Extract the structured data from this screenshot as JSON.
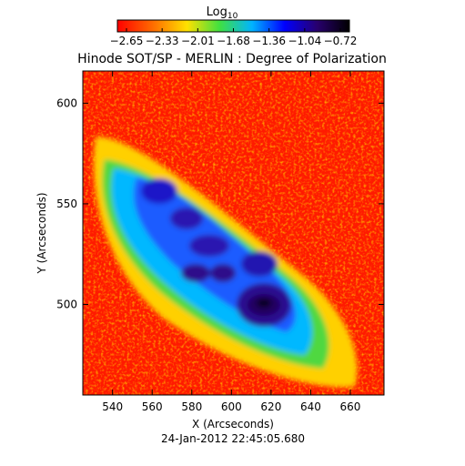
{
  "chart_data": {
    "type": "heatmap",
    "title": "Hinode SOT/SP - MERLIN : Degree of Polarization",
    "xlabel": "X (Arcseconds)",
    "ylabel": "Y (Arcseconds)",
    "date_label": "24-Jan-2012 22:45:05.680",
    "colorbar": {
      "title_base": "Log",
      "title_sub": "10",
      "tick_labels": [
        "-2.65",
        "-2.33",
        "-2.01",
        "-1.68",
        "-1.36",
        "-1.04",
        "-0.72"
      ],
      "range": [
        -2.65,
        -0.72
      ]
    },
    "xlim": [
      525,
      677
    ],
    "ylim": [
      455,
      616
    ],
    "xticks": [
      540,
      560,
      580,
      600,
      620,
      640,
      660
    ],
    "yticks": [
      500,
      550,
      600
    ],
    "colormap": [
      "#ff0000",
      "#ff7a00",
      "#ffe100",
      "#40e040",
      "#00b4ff",
      "#0000ff",
      "#28006e",
      "#000000"
    ]
  }
}
